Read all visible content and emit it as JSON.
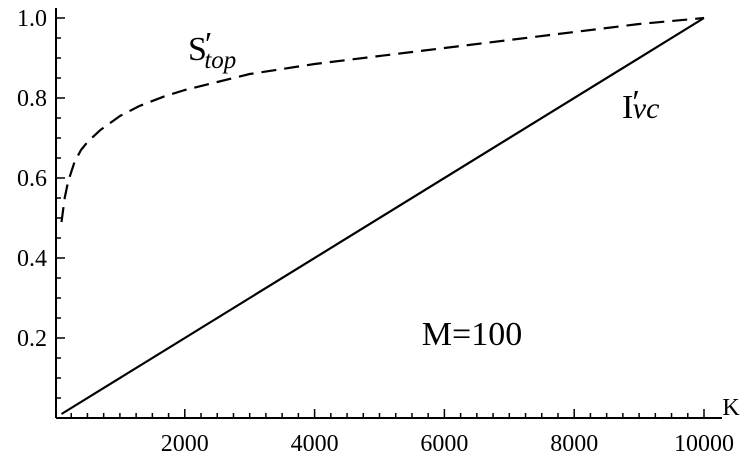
{
  "chart_data": {
    "type": "line",
    "title": "",
    "xlabel": "K",
    "ylabel": "",
    "xlim": [
      0,
      10000
    ],
    "ylim": [
      0,
      1.0
    ],
    "x_ticks": [
      2000,
      4000,
      6000,
      8000,
      10000
    ],
    "x_tick_labels": [
      "2000",
      "4000",
      "6000",
      "8000",
      "10000"
    ],
    "y_ticks": [
      0.2,
      0.4,
      0.6,
      0.8,
      1.0
    ],
    "y_tick_labels": [
      "0.2",
      "0.4",
      "0.6",
      "0.8",
      "1.0"
    ],
    "grid": false,
    "legend": "none",
    "series": [
      {
        "name": "S′top",
        "label_main": "S",
        "label_sub": "top",
        "style": "dashed",
        "x": [
          100,
          150,
          200,
          300,
          400,
          500,
          700,
          1000,
          1300,
          1700,
          2000,
          2500,
          3000,
          4000,
          5000,
          6000,
          7000,
          8000,
          9000,
          10000
        ],
        "y": [
          0.49,
          0.55,
          0.59,
          0.64,
          0.67,
          0.69,
          0.72,
          0.755,
          0.78,
          0.805,
          0.82,
          0.84,
          0.86,
          0.885,
          0.905,
          0.925,
          0.945,
          0.965,
          0.985,
          1.0
        ]
      },
      {
        "name": "I′vc",
        "label_main": "I",
        "label_sub": "vc",
        "style": "solid",
        "x": [
          100,
          10000
        ],
        "y": [
          0.01,
          1.0
        ]
      }
    ],
    "annotations": [
      {
        "text": "M=100"
      }
    ]
  }
}
